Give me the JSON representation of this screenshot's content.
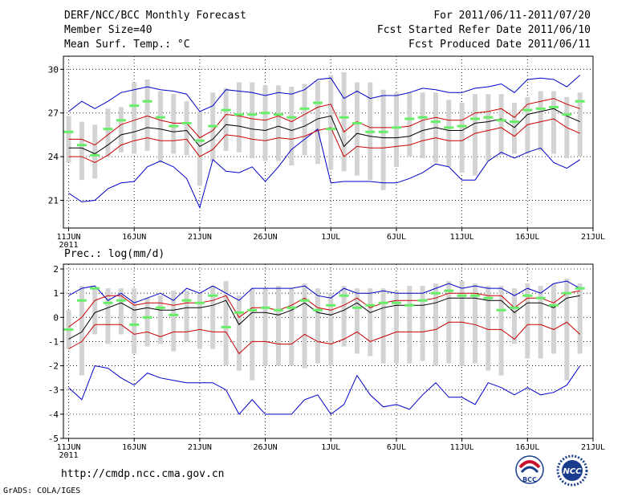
{
  "header": {
    "title": "DERF/NCC/BCC Monthly Forecast",
    "member_size": "Member Size=40",
    "variable": "Mean Surf. Temp.: °C",
    "forecast_period": "For 2011/06/11-2011/07/20",
    "fcst_started": "Fcst Started Refer Date 2011/06/10",
    "fcst_produced": "Fcst Produced Date 2011/06/11"
  },
  "panel2_title": "Prec.: log(mm/d)",
  "footer": {
    "url": "http://cmdp.ncc.cma.gov.cn",
    "credit": "GrADS: COLA/IGES",
    "logo1_label": "BCC",
    "logo2_label": "NCC"
  },
  "colors": {
    "ensemble_mean": "#000000",
    "spread": "#cc0000",
    "envelope": "#0000cc",
    "observed": "#66ee66",
    "bars": "#d3d3d3"
  },
  "chart_data": [
    {
      "type": "line",
      "title": "Mean Surf. Temp.: °C",
      "xlabel": "",
      "ylabel": "",
      "x_days": [
        0,
        1,
        2,
        3,
        4,
        5,
        6,
        7,
        8,
        9,
        10,
        11,
        12,
        13,
        14,
        15,
        16,
        17,
        18,
        19,
        20,
        21,
        22,
        23,
        24,
        25,
        26,
        27,
        28,
        29,
        30,
        31,
        32,
        33,
        34,
        35,
        36,
        37,
        38,
        39
      ],
      "xticks": [
        {
          "day": 0,
          "label": "11JUN",
          "sublabel": "2011"
        },
        {
          "day": 5,
          "label": "16JUN"
        },
        {
          "day": 10,
          "label": "21JUN"
        },
        {
          "day": 15,
          "label": "26JUN"
        },
        {
          "day": 20,
          "label": "1JUL"
        },
        {
          "day": 25,
          "label": "6JUL"
        },
        {
          "day": 30,
          "label": "11JUL"
        },
        {
          "day": 35,
          "label": "16JUL"
        },
        {
          "day": 40,
          "label": "21JUL"
        }
      ],
      "yticks": [
        21,
        24,
        27,
        30
      ],
      "ylim": [
        19.1,
        30.9
      ],
      "xlim": [
        -0.4,
        40
      ],
      "grid": true,
      "series": [
        {
          "name": "mean",
          "values": [
            24.6,
            24.6,
            24.2,
            24.8,
            25.5,
            25.7,
            26.0,
            25.9,
            25.7,
            25.8,
            24.7,
            25.2,
            26.2,
            26.1,
            25.9,
            25.8,
            26.1,
            25.8,
            26.1,
            26.6,
            26.8,
            24.7,
            25.6,
            25.4,
            25.3,
            25.3,
            25.4,
            25.8,
            26.0,
            25.8,
            25.8,
            26.3,
            26.4,
            26.6,
            26.0,
            26.9,
            27.1,
            27.3,
            26.8,
            26.4
          ]
        },
        {
          "name": "upper_spread",
          "values": [
            25.2,
            25.2,
            24.8,
            25.5,
            26.2,
            26.5,
            26.8,
            26.5,
            26.3,
            26.3,
            25.3,
            25.8,
            26.9,
            26.8,
            26.6,
            26.5,
            26.8,
            26.4,
            26.9,
            27.4,
            27.6,
            25.7,
            26.4,
            26.0,
            26.0,
            26.0,
            26.1,
            26.5,
            26.7,
            26.5,
            26.5,
            27.0,
            27.1,
            27.3,
            26.7,
            27.6,
            27.8,
            28.0,
            27.6,
            27.3
          ]
        },
        {
          "name": "lower_spread",
          "values": [
            24.0,
            24.0,
            23.6,
            24.1,
            24.8,
            25.1,
            25.3,
            25.1,
            25.1,
            25.2,
            24.0,
            24.5,
            25.5,
            25.4,
            25.2,
            25.1,
            25.3,
            25.2,
            25.4,
            25.8,
            26.0,
            24.0,
            24.7,
            24.6,
            24.6,
            24.7,
            24.8,
            25.1,
            25.3,
            25.1,
            25.1,
            25.6,
            25.8,
            26.0,
            25.4,
            26.2,
            26.4,
            26.6,
            26.0,
            25.6
          ]
        },
        {
          "name": "max",
          "values": [
            27.1,
            27.8,
            27.3,
            27.8,
            28.4,
            28.6,
            28.8,
            28.6,
            28.5,
            28.3,
            27.1,
            27.5,
            28.6,
            28.5,
            28.4,
            28.2,
            28.4,
            28.3,
            28.6,
            29.3,
            29.4,
            28.0,
            28.5,
            28.0,
            28.2,
            28.2,
            28.4,
            28.7,
            28.6,
            28.4,
            28.4,
            28.7,
            28.8,
            29.0,
            28.4,
            29.3,
            29.4,
            29.3,
            28.8,
            29.6
          ]
        },
        {
          "name": "min",
          "values": [
            21.5,
            20.9,
            21.0,
            21.8,
            22.2,
            22.3,
            23.3,
            23.7,
            23.3,
            22.5,
            20.5,
            23.8,
            23.0,
            22.9,
            23.3,
            22.3,
            23.3,
            24.5,
            25.2,
            25.9,
            22.2,
            22.3,
            22.3,
            22.3,
            22.2,
            22.2,
            22.5,
            22.9,
            23.5,
            23.3,
            22.4,
            22.4,
            23.7,
            24.3,
            23.9,
            24.3,
            24.6,
            23.6,
            23.2,
            23.8
          ]
        },
        {
          "name": "observed",
          "values": [
            25.7,
            24.8,
            24.1,
            25.9,
            26.5,
            27.5,
            27.8,
            26.7,
            26.1,
            26.3,
            25.1,
            26.1,
            27.2,
            26.9,
            26.9,
            27.0,
            26.9,
            26.7,
            27.3,
            27.7,
            25.9,
            26.7,
            26.3,
            25.7,
            25.7,
            26.0,
            26.6,
            26.7,
            26.4,
            26.0,
            26.1,
            26.6,
            26.7,
            26.5,
            26.4,
            27.2,
            27.3,
            27.4,
            26.9,
            27.8
          ]
        },
        {
          "name": "bar_top",
          "values": [
            26.8,
            26.4,
            26.2,
            27.3,
            27.4,
            29.1,
            29.3,
            28.5,
            28.3,
            27.8,
            27.1,
            28.4,
            28.7,
            29.1,
            29.1,
            28.9,
            28.9,
            28.8,
            29.0,
            29.2,
            29.6,
            29.8,
            29.1,
            29.1,
            28.6,
            28.4,
            28.4,
            28.4,
            28.4,
            27.9,
            27.7,
            28.3,
            28.3,
            28.3,
            27.7,
            28.1,
            28.5,
            28.5,
            28.1,
            28.4
          ]
        },
        {
          "name": "bar_bottom",
          "values": [
            23.6,
            22.4,
            22.5,
            24.0,
            24.3,
            24.2,
            24.4,
            23.6,
            24.2,
            24.1,
            22.0,
            23.7,
            24.4,
            24.3,
            23.9,
            23.7,
            23.7,
            23.4,
            24.1,
            23.5,
            23.1,
            23.0,
            22.7,
            22.4,
            21.7,
            23.3,
            24.0,
            23.9,
            23.6,
            23.3,
            22.9,
            22.7,
            23.7,
            24.1,
            24.2,
            24.2,
            24.4,
            24.2,
            23.9,
            24.0
          ]
        }
      ]
    },
    {
      "type": "line",
      "title": "Prec.: log(mm/d)",
      "xlabel": "",
      "ylabel": "",
      "x_days": [
        0,
        1,
        2,
        3,
        4,
        5,
        6,
        7,
        8,
        9,
        10,
        11,
        12,
        13,
        14,
        15,
        16,
        17,
        18,
        19,
        20,
        21,
        22,
        23,
        24,
        25,
        26,
        27,
        28,
        29,
        30,
        31,
        32,
        33,
        34,
        35,
        36,
        37,
        38,
        39
      ],
      "xticks": [
        {
          "day": 0,
          "label": "11JUN",
          "sublabel": "2011"
        },
        {
          "day": 5,
          "label": "16JUN"
        },
        {
          "day": 10,
          "label": "21JUN"
        },
        {
          "day": 15,
          "label": "26JUN"
        },
        {
          "day": 20,
          "label": "1JUL"
        },
        {
          "day": 25,
          "label": "6JUL"
        },
        {
          "day": 30,
          "label": "11JUL"
        },
        {
          "day": 35,
          "label": "16JUL"
        },
        {
          "day": 40,
          "label": "21JUL"
        }
      ],
      "yticks": [
        -5,
        -4,
        -3,
        -2,
        -1,
        0,
        1,
        2
      ],
      "ylim": [
        -5,
        2.2
      ],
      "xlim": [
        -0.4,
        40
      ],
      "grid": true,
      "series": [
        {
          "name": "mean",
          "values": [
            -0.9,
            -0.6,
            0.2,
            0.4,
            0.6,
            0.3,
            0.4,
            0.3,
            0.3,
            0.4,
            0.4,
            0.5,
            0.7,
            -0.3,
            0.2,
            0.2,
            0.1,
            0.3,
            0.6,
            0.2,
            0.1,
            0.3,
            0.6,
            0.2,
            0.4,
            0.5,
            0.5,
            0.5,
            0.6,
            0.8,
            0.8,
            0.8,
            0.7,
            0.7,
            0.2,
            0.6,
            0.6,
            0.4,
            0.8,
            0.9
          ]
        },
        {
          "name": "upper_spread",
          "values": [
            -0.4,
            0.0,
            0.7,
            0.9,
            0.9,
            0.5,
            0.6,
            0.6,
            0.5,
            0.6,
            0.6,
            0.7,
            0.9,
            0.0,
            0.4,
            0.4,
            0.3,
            0.5,
            0.8,
            0.4,
            0.3,
            0.5,
            0.8,
            0.4,
            0.6,
            0.7,
            0.7,
            0.7,
            0.8,
            1.0,
            1.0,
            1.0,
            0.9,
            0.9,
            0.4,
            0.8,
            0.8,
            0.6,
            1.0,
            1.1
          ]
        },
        {
          "name": "lower_spread",
          "values": [
            -1.3,
            -1.0,
            -0.3,
            -0.3,
            -0.3,
            -0.7,
            -0.6,
            -0.8,
            -0.6,
            -0.6,
            -0.5,
            -0.6,
            -0.6,
            -1.5,
            -1.0,
            -1.0,
            -1.1,
            -1.1,
            -0.7,
            -1.0,
            -1.1,
            -0.9,
            -0.6,
            -1.0,
            -0.8,
            -0.6,
            -0.6,
            -0.6,
            -0.5,
            -0.2,
            -0.2,
            -0.3,
            -0.5,
            -0.5,
            -0.9,
            -0.3,
            -0.3,
            -0.5,
            -0.2,
            -0.7
          ]
        },
        {
          "name": "max",
          "values": [
            0.9,
            1.2,
            1.3,
            0.7,
            1.0,
            0.6,
            0.8,
            1.0,
            0.7,
            1.2,
            1.0,
            1.3,
            1.0,
            0.7,
            1.2,
            1.2,
            1.2,
            1.2,
            1.3,
            0.9,
            0.8,
            1.2,
            1.0,
            1.0,
            1.1,
            1.0,
            1.0,
            1.0,
            1.2,
            1.4,
            1.2,
            1.3,
            1.2,
            1.2,
            0.9,
            1.2,
            1.0,
            1.4,
            1.5,
            1.2
          ]
        },
        {
          "name": "min",
          "values": [
            -2.9,
            -3.4,
            -2.0,
            -2.1,
            -2.5,
            -2.8,
            -2.3,
            -2.5,
            -2.6,
            -2.7,
            -2.7,
            -2.7,
            -3.0,
            -4.0,
            -3.4,
            -4.0,
            -4.0,
            -4.0,
            -3.4,
            -3.2,
            -4.0,
            -3.6,
            -2.4,
            -3.2,
            -3.7,
            -3.6,
            -3.8,
            -3.2,
            -2.7,
            -3.3,
            -3.3,
            -3.6,
            -2.7,
            -2.9,
            -3.2,
            -2.9,
            -3.2,
            -3.1,
            -2.8,
            -2.0
          ]
        },
        {
          "name": "observed",
          "values": [
            -0.5,
            0.7,
            1.2,
            0.6,
            0.7,
            -0.3,
            0.0,
            0.4,
            0.1,
            0.7,
            0.6,
            0.9,
            -0.4,
            0.2,
            0.3,
            0.4,
            0.3,
            0.4,
            0.7,
            0.3,
            0.5,
            0.9,
            0.4,
            0.5,
            0.6,
            0.6,
            0.5,
            0.7,
            1.0,
            1.1,
            0.9,
            0.9,
            0.8,
            0.3,
            0.4,
            0.9,
            0.8,
            0.5,
            1.0,
            1.2
          ]
        },
        {
          "name": "bar_top",
          "values": [
            0.3,
            1.3,
            1.2,
            1.2,
            1.2,
            1.2,
            0.8,
            0.9,
            1.1,
            1.1,
            1.0,
            1.3,
            1.5,
            0.9,
            1.2,
            1.2,
            1.3,
            1.2,
            1.4,
            1.2,
            1.0,
            1.3,
            1.2,
            1.2,
            1.2,
            1.1,
            1.3,
            1.3,
            1.4,
            1.5,
            1.5,
            1.4,
            1.3,
            1.3,
            1.2,
            1.4,
            1.3,
            1.4,
            1.6,
            1.4
          ]
        },
        {
          "name": "bar_bottom",
          "values": [
            -1.3,
            -2.4,
            -0.7,
            -1.1,
            -0.7,
            -1.5,
            -1.2,
            -1.1,
            -1.4,
            -1.0,
            -1.3,
            -1.3,
            -2.0,
            -2.2,
            -2.6,
            -2.0,
            -2.0,
            -2.0,
            -2.1,
            -1.9,
            -2.0,
            -1.2,
            -1.5,
            -1.6,
            -1.9,
            -1.9,
            -1.9,
            -1.8,
            -2.0,
            -1.9,
            -2.0,
            -1.9,
            -2.2,
            -2.4,
            -1.1,
            -1.7,
            -1.7,
            -1.5,
            -2.6,
            -1.5
          ]
        }
      ]
    }
  ]
}
